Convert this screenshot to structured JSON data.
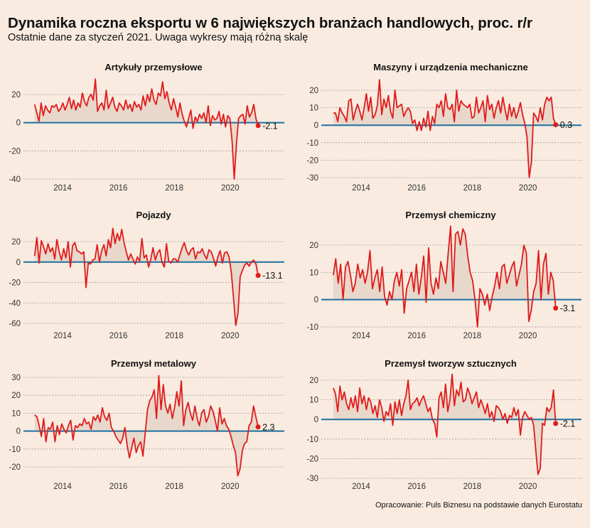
{
  "title": "Dynamika roczna eksportu w 6 największych branżach handlowych, proc. r/r",
  "subtitle": "Ostatnie dane za styczeń 2021. Uwaga wykresy mają różną skalę",
  "source": "Opracowanie: Puls Biznesu na podstawie danych Eurostatu",
  "colors": {
    "line": "#e01b1b",
    "area": "#e8d8cb",
    "zero": "#1f6fa0",
    "grid": "#999999",
    "background": "#f9ebe0"
  },
  "chart_data": [
    {
      "type": "line",
      "title": "Artykuły przemysłowe",
      "x_ticks": [
        "2014",
        "2016",
        "2018",
        "2020"
      ],
      "y_ticks": [
        20,
        0,
        -20,
        -40
      ],
      "ylim": [
        -40,
        31
      ],
      "x_start": "2013-01",
      "x_end": "2021-01",
      "last_value_label": "-2.1",
      "values": [
        13,
        7,
        1,
        14,
        5,
        12,
        9,
        7,
        12,
        11,
        13,
        8,
        10,
        14,
        9,
        13,
        18,
        10,
        16,
        9,
        14,
        11,
        21,
        15,
        12,
        18,
        20,
        16,
        31,
        8,
        12,
        14,
        9,
        23,
        10,
        14,
        18,
        11,
        8,
        14,
        12,
        9,
        16,
        10,
        13,
        8,
        15,
        11,
        13,
        9,
        19,
        12,
        20,
        15,
        24,
        16,
        13,
        21,
        19,
        29,
        17,
        22,
        14,
        9,
        17,
        11,
        4,
        14,
        6,
        1,
        -3,
        3,
        9,
        -4,
        4,
        1,
        6,
        3,
        7,
        0,
        12,
        -2,
        5,
        2,
        3,
        8,
        -1,
        6,
        -3,
        5,
        3,
        -13,
        -40,
        -15,
        3,
        5,
        6,
        -1,
        12,
        4,
        7,
        13,
        3,
        -2.1
      ]
    },
    {
      "type": "line",
      "title": "Maszyny i urządzenia mechaniczne",
      "x_ticks": [
        "2014",
        "2016",
        "2018",
        "2020"
      ],
      "y_ticks": [
        20,
        10,
        0,
        -10,
        -20,
        -30
      ],
      "ylim": [
        -32,
        27
      ],
      "x_start": "2013-01",
      "x_end": "2021-01",
      "last_value_label": "0.3",
      "values": [
        7,
        7,
        2,
        10,
        7,
        5,
        2,
        14,
        15,
        3,
        8,
        12,
        8,
        3,
        10,
        18,
        8,
        16,
        4,
        6,
        11,
        26,
        6,
        15,
        10,
        17,
        8,
        4,
        20,
        10,
        11,
        12,
        5,
        8,
        10,
        8,
        1,
        3,
        -3,
        2,
        -3,
        4,
        -1,
        8,
        -3,
        5,
        1,
        12,
        10,
        14,
        5,
        18,
        10,
        9,
        12,
        2,
        20,
        8,
        14,
        12,
        11,
        10,
        12,
        4,
        5,
        16,
        7,
        10,
        14,
        2,
        17,
        9,
        12,
        4,
        10,
        14,
        7,
        16,
        9,
        3,
        12,
        5,
        10,
        4,
        8,
        13,
        6,
        1,
        -7,
        -30,
        -21,
        7,
        5,
        2,
        10,
        3,
        12,
        16,
        14,
        16,
        4,
        0.3
      ]
    },
    {
      "type": "line",
      "title": "Pojazdy",
      "x_ticks": [
        "2014",
        "2016",
        "2018",
        "2020"
      ],
      "y_ticks": [
        20,
        0,
        -20,
        -40,
        -60
      ],
      "ylim": [
        -63,
        34
      ],
      "x_start": "2013-01",
      "x_end": "2021-01",
      "last_value_label": "-13.1",
      "values": [
        6,
        24,
        -1,
        21,
        15,
        8,
        18,
        10,
        14,
        3,
        22,
        10,
        2,
        13,
        4,
        20,
        -5,
        16,
        19,
        11,
        10,
        8,
        10,
        -25,
        -1,
        -2,
        2,
        3,
        17,
        0,
        11,
        17,
        6,
        22,
        14,
        33,
        18,
        28,
        21,
        32,
        19,
        10,
        2,
        8,
        3,
        -2,
        5,
        1,
        23,
        4,
        7,
        -5,
        3,
        14,
        2,
        9,
        12,
        0,
        -5,
        18,
        1,
        -1,
        3,
        3,
        0,
        7,
        14,
        19,
        11,
        7,
        12,
        14,
        3,
        10,
        9,
        13,
        7,
        3,
        12,
        10,
        4,
        -4,
        5,
        11,
        -1,
        9,
        10,
        5,
        -10,
        -35,
        -62,
        -50,
        -14,
        -8,
        -3,
        -1,
        -4,
        0,
        2,
        -2,
        -13.1
      ]
    },
    {
      "type": "line",
      "title": "Przemysł chemiczny",
      "x_ticks": [
        "2014",
        "2016",
        "2018",
        "2020"
      ],
      "y_ticks": [
        20,
        10,
        0,
        -10
      ],
      "ylim": [
        -11,
        27
      ],
      "x_start": "2013-01",
      "x_end": "2021-01",
      "last_value_label": "-3.1",
      "values": [
        9,
        15,
        6,
        13,
        0,
        12,
        14,
        9,
        3,
        6,
        13,
        8,
        11,
        6,
        10,
        18,
        4,
        8,
        11,
        3,
        12,
        1,
        -2,
        3,
        0,
        7,
        10,
        5,
        11,
        -5,
        4,
        7,
        10,
        3,
        13,
        2,
        8,
        16,
        -1,
        19,
        6,
        2,
        8,
        4,
        14,
        10,
        6,
        17,
        27,
        3,
        24,
        25,
        20,
        26,
        24,
        16,
        10,
        7,
        0,
        -10,
        4,
        2,
        -2,
        2,
        -4,
        1,
        5,
        10,
        4,
        12,
        13,
        6,
        9,
        12,
        14,
        5,
        9,
        13,
        20,
        17,
        -8,
        -4,
        3,
        6,
        18,
        0,
        13,
        17,
        2,
        10,
        7,
        -3.1
      ]
    },
    {
      "type": "line",
      "title": "Przemysł metalowy",
      "x_ticks": [
        "2014",
        "2016",
        "2018",
        "2020"
      ],
      "y_ticks": [
        30,
        20,
        10,
        0,
        -10,
        -20
      ],
      "ylim": [
        -25,
        32
      ],
      "x_start": "2013-01",
      "x_end": "2021-01",
      "last_value_label": "2.3",
      "values": [
        9,
        8,
        3,
        -3,
        7,
        -6,
        2,
        1,
        5,
        -6,
        3,
        -2,
        4,
        1,
        -1,
        3,
        6,
        -5,
        3,
        2,
        4,
        3,
        7,
        4,
        5,
        1,
        8,
        6,
        9,
        5,
        13,
        8,
        6,
        10,
        2,
        0,
        -3,
        -5,
        -7,
        -4,
        2,
        -8,
        -15,
        -9,
        -4,
        -12,
        -8,
        -6,
        -14,
        -1,
        12,
        17,
        19,
        23,
        7,
        31,
        12,
        26,
        14,
        10,
        15,
        7,
        13,
        22,
        14,
        28,
        3,
        12,
        16,
        10,
        6,
        14,
        7,
        3,
        10,
        12,
        5,
        8,
        14,
        11,
        6,
        0,
        13,
        4,
        7,
        3,
        1,
        -3,
        -8,
        -12,
        -25,
        -21,
        -11,
        -7,
        -6,
        3,
        5,
        14,
        8,
        2.3
      ]
    },
    {
      "type": "line",
      "title": "Przemysł tworzyw sztucznych",
      "x_ticks": [
        "2014",
        "2016",
        "2018",
        "2020"
      ],
      "y_ticks": [
        20,
        10,
        0,
        -10,
        -20,
        -30
      ],
      "ylim": [
        -30,
        23
      ],
      "x_start": "2013-01",
      "x_end": "2021-01",
      "last_value_label": "-2.1",
      "values": [
        16,
        13,
        4,
        17,
        10,
        14,
        8,
        5,
        11,
        6,
        12,
        4,
        16,
        8,
        12,
        5,
        11,
        9,
        3,
        7,
        1,
        10,
        6,
        -1,
        4,
        2,
        8,
        -3,
        9,
        3,
        10,
        2,
        8,
        12,
        20,
        5,
        8,
        9,
        11,
        7,
        10,
        12,
        8,
        4,
        6,
        0,
        -2,
        -9,
        11,
        14,
        6,
        18,
        4,
        10,
        23,
        7,
        15,
        12,
        19,
        9,
        10,
        16,
        13,
        8,
        11,
        14,
        6,
        10,
        7,
        3,
        8,
        1,
        4,
        -1,
        7,
        6,
        4,
        0,
        3,
        -2,
        2,
        1,
        6,
        2,
        5,
        -8,
        1,
        4,
        2,
        0,
        1,
        -3,
        -16,
        -28,
        -25,
        -2,
        -3,
        6,
        4,
        6,
        15,
        -2.1
      ]
    }
  ]
}
